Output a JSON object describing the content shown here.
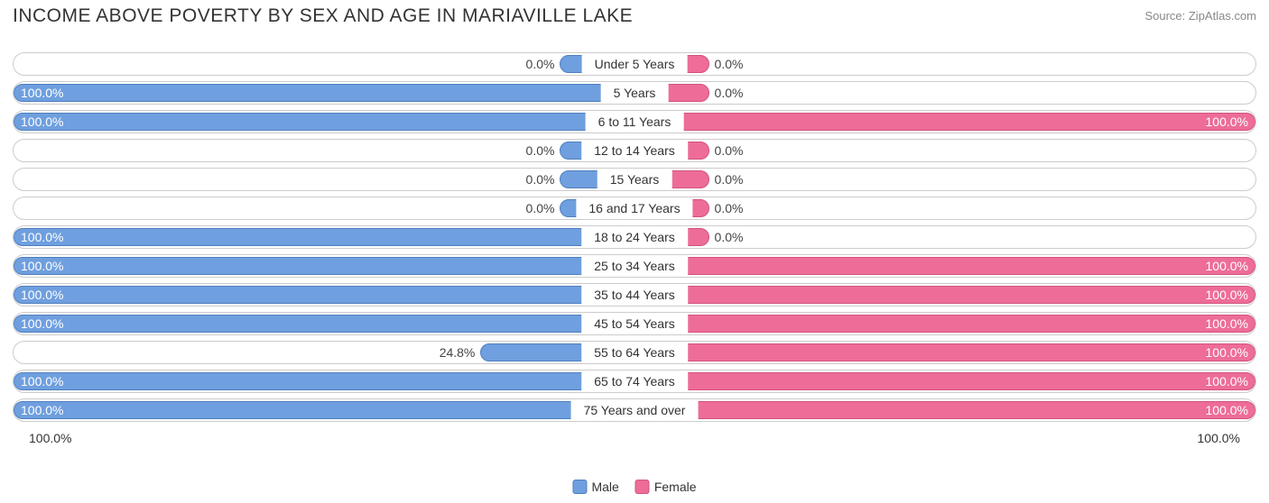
{
  "title": "INCOME ABOVE POVERTY BY SEX AND AGE IN MARIAVILLE LAKE",
  "source": "Source: ZipAtlas.com",
  "chart": {
    "type": "diverging-bar",
    "male_color": "#6f9fde",
    "male_border": "#4f7fc0",
    "female_color": "#ed6d98",
    "female_border": "#d3527f",
    "track_border": "#cccccc",
    "track_bg": "#ffffff",
    "min_bar_pct": 12,
    "axis_left": "100.0%",
    "axis_right": "100.0%",
    "legend": {
      "male": "Male",
      "female": "Female"
    },
    "rows": [
      {
        "category": "Under 5 Years",
        "male": 0.0,
        "female": 0.0
      },
      {
        "category": "5 Years",
        "male": 100.0,
        "female": 0.0
      },
      {
        "category": "6 to 11 Years",
        "male": 100.0,
        "female": 100.0
      },
      {
        "category": "12 to 14 Years",
        "male": 0.0,
        "female": 0.0
      },
      {
        "category": "15 Years",
        "male": 0.0,
        "female": 0.0
      },
      {
        "category": "16 and 17 Years",
        "male": 0.0,
        "female": 0.0
      },
      {
        "category": "18 to 24 Years",
        "male": 100.0,
        "female": 0.0
      },
      {
        "category": "25 to 34 Years",
        "male": 100.0,
        "female": 100.0
      },
      {
        "category": "35 to 44 Years",
        "male": 100.0,
        "female": 100.0
      },
      {
        "category": "45 to 54 Years",
        "male": 100.0,
        "female": 100.0
      },
      {
        "category": "55 to 64 Years",
        "male": 24.8,
        "female": 100.0
      },
      {
        "category": "65 to 74 Years",
        "male": 100.0,
        "female": 100.0
      },
      {
        "category": "75 Years and over",
        "male": 100.0,
        "female": 100.0
      }
    ]
  },
  "text_color_light": "#ffffff",
  "text_color_dark": "#444444"
}
